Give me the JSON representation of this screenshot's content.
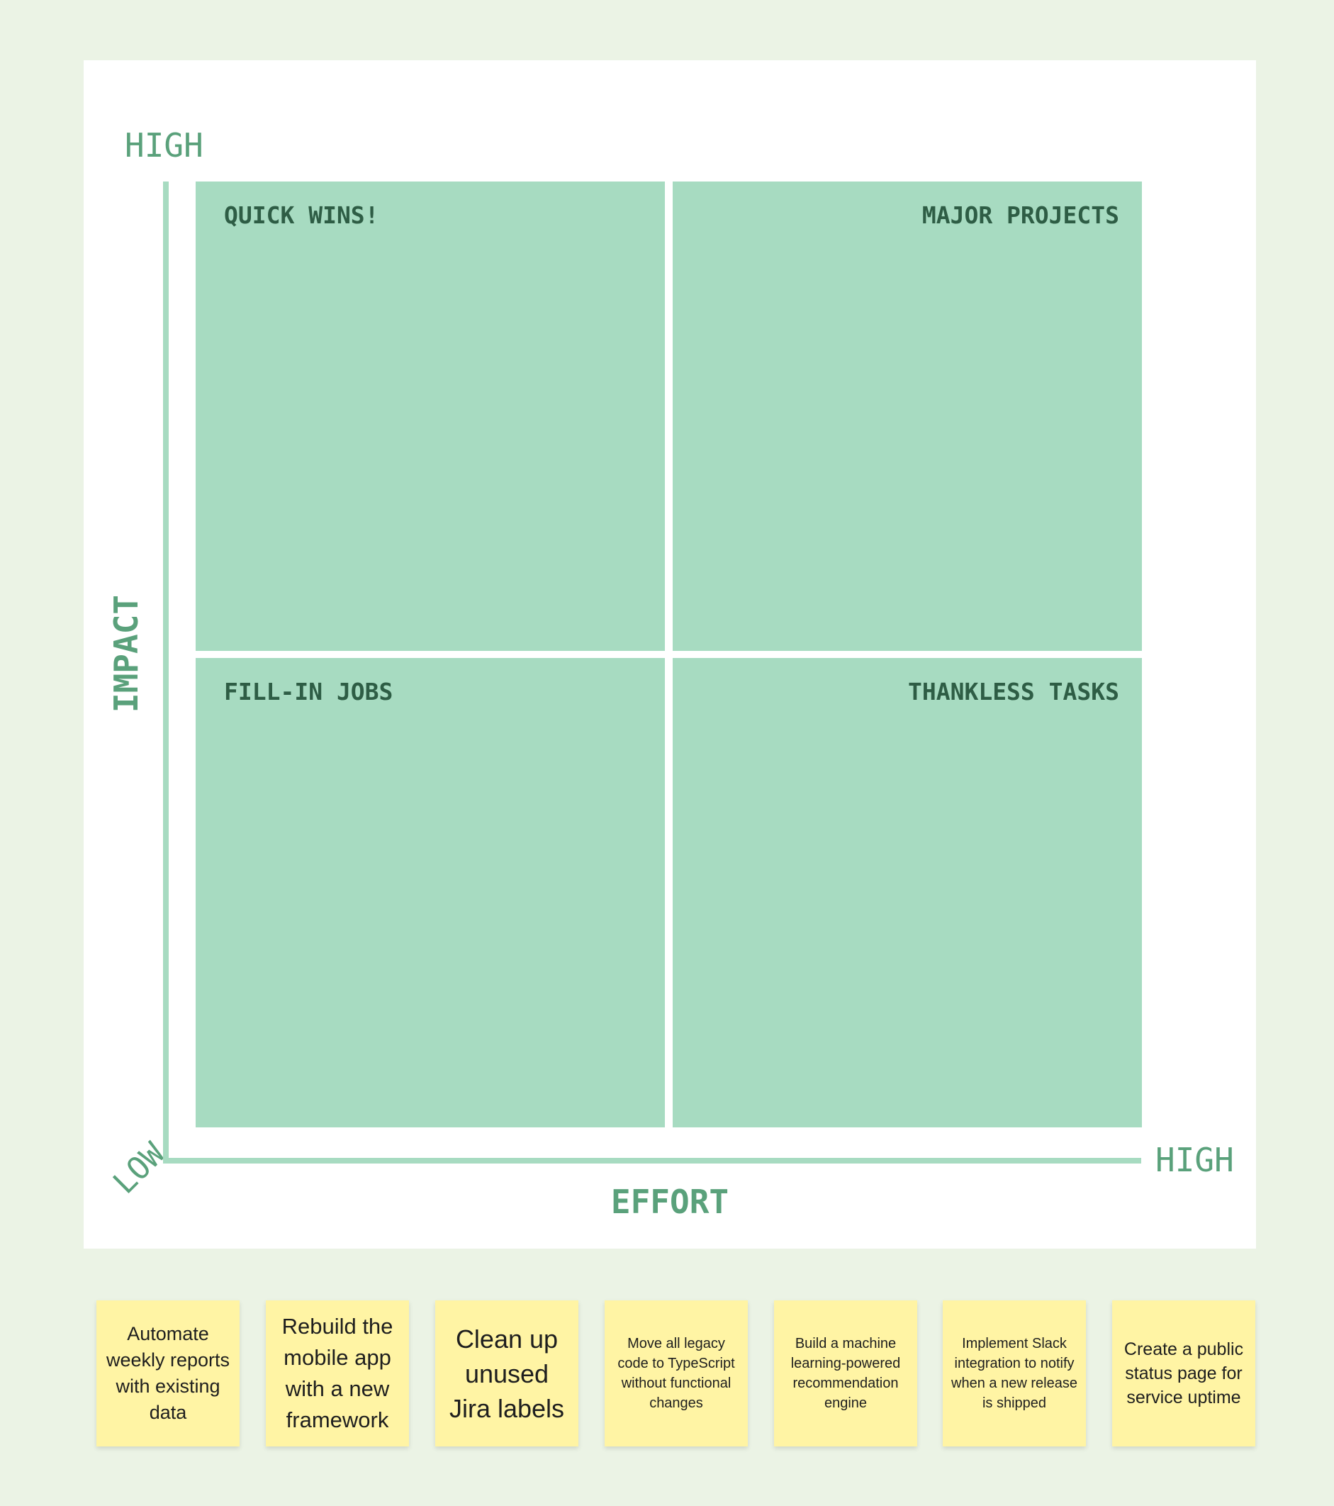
{
  "matrix": {
    "y_axis_label": "IMPACT",
    "x_axis_label": "EFFORT",
    "y_high_label": "HIGH",
    "x_high_label": "HIGH",
    "origin_label": "LOW",
    "quadrants": {
      "top_left": "QUICK WINS!",
      "top_right": "MAJOR PROJECTS",
      "bottom_left": "FILL-IN JOBS",
      "bottom_right": "THANKLESS TASKS"
    }
  },
  "sticky_notes": [
    "Automate weekly reports with existing data",
    "Rebuild the mobile app with a new framework",
    "Clean up unused Jira labels",
    "Move all legacy code to TypeScript without functional changes",
    "Build a machine learning-powered recommendation engine",
    "Implement Slack integration to notify when a new release is shipped",
    "Create a public status page for service uptime"
  ],
  "colors": {
    "background": "#ebf3e5",
    "board": "#ffffff",
    "quadrant_fill": "#a7dbc1",
    "axis_text": "#5aa17b",
    "quadrant_title": "#2e5d45",
    "sticky_note": "#fff4a4"
  }
}
